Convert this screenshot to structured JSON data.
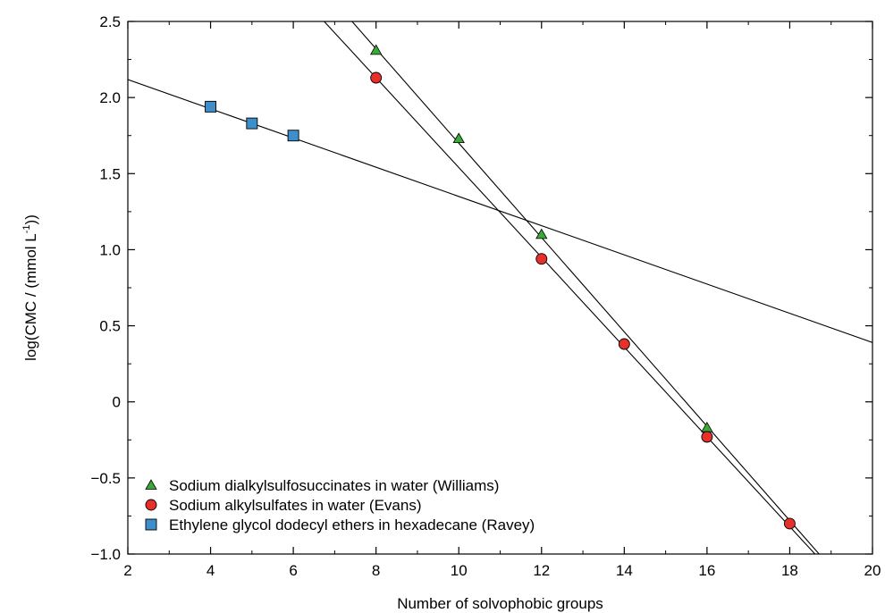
{
  "chart_data": {
    "type": "scatter",
    "xlabel": "Number of solvophobic groups",
    "ylabel": "log(CMC / (mmol L",
    "ylabel_sup": "-1",
    "ylabel_tail": "))",
    "xlim": [
      2,
      20
    ],
    "ylim": [
      -1.0,
      2.5
    ],
    "grid": false,
    "legend_position": "bottom-left",
    "xticks": [
      {
        "value": 2,
        "label": "2"
      },
      {
        "value": 4,
        "label": "4"
      },
      {
        "value": 6,
        "label": "6"
      },
      {
        "value": 8,
        "label": "8"
      },
      {
        "value": 10,
        "label": "10"
      },
      {
        "value": 12,
        "label": "12"
      },
      {
        "value": 14,
        "label": "14"
      },
      {
        "value": 16,
        "label": "16"
      },
      {
        "value": 18,
        "label": "18"
      },
      {
        "value": 20,
        "label": "20"
      }
    ],
    "yticks": [
      {
        "value": 2.5,
        "label": "2.5"
      },
      {
        "value": 2.0,
        "label": "2.0"
      },
      {
        "value": 1.5,
        "label": "1.5"
      },
      {
        "value": 1.0,
        "label": "1.0"
      },
      {
        "value": 0.5,
        "label": "0.5"
      },
      {
        "value": 0,
        "label": "0"
      },
      {
        "value": -0.5,
        "label": "−0.5"
      },
      {
        "value": -1.0,
        "label": "−1.0"
      }
    ],
    "series": [
      {
        "name": "Sodium dialkylsulfosuccinates in water (Williams)",
        "marker": "triangle",
        "color": "#3aa935",
        "x": [
          8,
          10,
          12,
          16
        ],
        "y": [
          2.31,
          1.73,
          1.1,
          -0.17
        ],
        "fit": {
          "slope": -0.31,
          "intercept": 4.8
        }
      },
      {
        "name": "Sodium alkylsulfates in water (Evans)",
        "marker": "circle",
        "color": "#e8302a",
        "x": [
          8,
          12,
          14,
          16,
          18
        ],
        "y": [
          2.13,
          0.94,
          0.38,
          -0.23,
          -0.8
        ],
        "fit": {
          "slope": -0.295,
          "intercept": 4.49
        }
      },
      {
        "name": "Ethylene glycol dodecyl ethers in hexadecane (Ravey)",
        "marker": "square",
        "color": "#3e8fc9",
        "x": [
          4,
          5,
          6
        ],
        "y": [
          1.94,
          1.83,
          1.75
        ],
        "fit": {
          "slope": -0.096,
          "intercept": 2.31
        }
      }
    ]
  }
}
